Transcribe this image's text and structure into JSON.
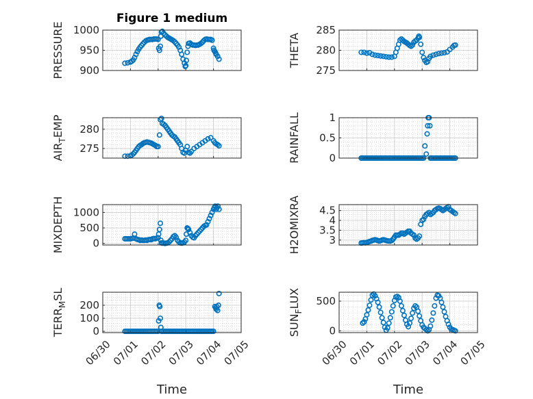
{
  "figure": {
    "title": "Figure 1 medium",
    "xlabel": "Time"
  },
  "colors": {
    "marker": "#0072BD",
    "axis": "#262626",
    "grid": "#c8c8c8",
    "background": "#ffffff"
  },
  "chart_data": [
    {
      "type": "scatter",
      "ylabel": "PRESSURE",
      "ylabel_sub": "",
      "ylabel_suffix": "",
      "ylim": [
        900,
        1000
      ],
      "yticks": [
        "900",
        "950",
        "1000"
      ],
      "ytick_values": [
        900,
        950,
        1000
      ],
      "xlim": [
        0,
        5
      ],
      "xtick_labels": [
        "06/30",
        "07/01",
        "07/02",
        "07/03",
        "07/04",
        "07/05"
      ],
      "show_xticklabels": false,
      "x": [
        0.8,
        0.9,
        1.0,
        1.05,
        1.1,
        1.15,
        1.2,
        1.25,
        1.3,
        1.35,
        1.4,
        1.45,
        1.5,
        1.55,
        1.6,
        1.65,
        1.7,
        1.75,
        1.8,
        1.85,
        1.9,
        1.95,
        2.0,
        2.02,
        2.05,
        2.08,
        2.1,
        2.12,
        2.15,
        2.2,
        2.25,
        2.3,
        2.35,
        2.4,
        2.45,
        2.5,
        2.55,
        2.6,
        2.65,
        2.7,
        2.75,
        2.8,
        2.85,
        2.9,
        2.95,
        2.98,
        3.0,
        3.02,
        3.05,
        3.08,
        3.1,
        3.15,
        3.2,
        3.25,
        3.3,
        3.35,
        3.4,
        3.45,
        3.5,
        3.55,
        3.6,
        3.65,
        3.7,
        3.75,
        3.8,
        3.85,
        3.9,
        3.95,
        4.0,
        4.02,
        4.05,
        4.08,
        4.1,
        4.15,
        4.2
      ],
      "y": [
        918,
        919,
        921,
        923,
        926,
        932,
        940,
        947,
        953,
        958,
        962,
        966,
        970,
        973,
        975,
        976,
        977,
        977,
        977,
        978,
        978,
        978,
        977,
        955,
        950,
        960,
        985,
        995,
        997,
        992,
        988,
        985,
        982,
        980,
        978,
        976,
        974,
        971,
        967,
        963,
        958,
        950,
        940,
        928,
        918,
        910,
        912,
        925,
        945,
        960,
        967,
        968,
        965,
        963,
        963,
        962,
        963,
        963,
        965,
        967,
        970,
        974,
        977,
        978,
        977,
        977,
        977,
        975,
        955,
        950,
        947,
        943,
        940,
        935,
        928
      ]
    },
    {
      "type": "scatter",
      "ylabel": "THETA",
      "ylabel_sub": "",
      "ylabel_suffix": "",
      "ylim": [
        275,
        285
      ],
      "yticks": [
        "275",
        "280",
        "285"
      ],
      "ytick_values": [
        275,
        280,
        285
      ],
      "xlim": [
        0,
        5
      ],
      "xtick_labels": [
        "06/30",
        "07/01",
        "07/02",
        "07/03",
        "07/04",
        "07/05"
      ],
      "show_xticklabels": false,
      "x": [
        0.8,
        0.9,
        1.0,
        1.1,
        1.2,
        1.3,
        1.4,
        1.5,
        1.6,
        1.7,
        1.8,
        1.9,
        2.0,
        2.05,
        2.1,
        2.15,
        2.2,
        2.25,
        2.3,
        2.35,
        2.4,
        2.45,
        2.5,
        2.55,
        2.6,
        2.65,
        2.7,
        2.75,
        2.8,
        2.85,
        2.88,
        2.9,
        2.95,
        3.0,
        3.05,
        3.1,
        3.15,
        3.2,
        3.25,
        3.3,
        3.4,
        3.5,
        3.6,
        3.7,
        3.8,
        3.9,
        4.0,
        4.1,
        4.15,
        4.2
      ],
      "y": [
        279.5,
        279.5,
        279.3,
        279.4,
        279.0,
        278.8,
        278.7,
        278.6,
        278.5,
        278.4,
        278.3,
        278.3,
        278.5,
        279.5,
        280.5,
        281.5,
        282.5,
        282.8,
        282.5,
        282.2,
        282.0,
        281.8,
        281.5,
        281.2,
        281.0,
        281.3,
        282.0,
        282.3,
        282.5,
        283.0,
        283.5,
        283.2,
        281.5,
        279.5,
        278.2,
        277.5,
        277.0,
        277.2,
        278.0,
        278.5,
        278.8,
        279.0,
        279.2,
        279.3,
        279.4,
        279.6,
        280.2,
        280.8,
        281.2,
        281.3
      ]
    },
    {
      "type": "scatter",
      "ylabel": "AIR",
      "ylabel_sub": "T",
      "ylabel_suffix": "EMP",
      "ylim": [
        272.5,
        283
      ],
      "yticks": [
        "275",
        "280"
      ],
      "ytick_values": [
        275,
        280
      ],
      "xlim": [
        0,
        5
      ],
      "xtick_labels": [
        "06/30",
        "07/01",
        "07/02",
        "07/03",
        "07/04",
        "07/05"
      ],
      "show_xticklabels": false,
      "x": [
        0.8,
        0.9,
        1.0,
        1.05,
        1.1,
        1.15,
        1.2,
        1.25,
        1.3,
        1.35,
        1.4,
        1.45,
        1.5,
        1.55,
        1.6,
        1.65,
        1.7,
        1.75,
        1.8,
        1.85,
        1.9,
        1.95,
        2.0,
        2.05,
        2.08,
        2.12,
        2.15,
        2.2,
        2.25,
        2.3,
        2.35,
        2.4,
        2.45,
        2.5,
        2.55,
        2.6,
        2.65,
        2.7,
        2.75,
        2.8,
        2.85,
        2.9,
        2.95,
        3.0,
        3.05,
        3.1,
        3.15,
        3.2,
        3.3,
        3.4,
        3.5,
        3.6,
        3.7,
        3.8,
        3.9,
        4.0,
        4.05,
        4.1,
        4.15,
        4.2
      ],
      "y": [
        273,
        273,
        273.1,
        273.3,
        273.6,
        274.0,
        274.5,
        275.0,
        275.5,
        275.8,
        276.0,
        276.3,
        276.5,
        276.6,
        276.7,
        276.6,
        276.5,
        276.4,
        276.2,
        276.0,
        275.8,
        275.5,
        275.5,
        278.5,
        282.5,
        282.8,
        281.5,
        281.3,
        281.0,
        280.5,
        280.0,
        279.5,
        279.0,
        278.5,
        278.2,
        278.0,
        277.5,
        277.0,
        276.5,
        276.0,
        275.0,
        274.0,
        273.8,
        274.5,
        275.5,
        274.0,
        273.8,
        274.2,
        275.0,
        275.5,
        276.0,
        276.5,
        277.0,
        277.5,
        277.8,
        277.0,
        276.5,
        276.2,
        276.0,
        275.7
      ]
    },
    {
      "type": "scatter",
      "ylabel": "RAINFALL",
      "ylabel_sub": "",
      "ylabel_suffix": "",
      "ylim": [
        0,
        1
      ],
      "yticks": [
        "0",
        "0.5",
        "1"
      ],
      "ytick_values": [
        0,
        0.5,
        1
      ],
      "xlim": [
        0,
        5
      ],
      "xtick_labels": [
        "06/30",
        "07/01",
        "07/02",
        "07/03",
        "07/04",
        "07/05"
      ],
      "show_xticklabels": false,
      "x": [
        0.8,
        0.85,
        0.9,
        0.95,
        1.0,
        1.05,
        1.1,
        1.15,
        1.2,
        1.25,
        1.3,
        1.35,
        1.4,
        1.45,
        1.5,
        1.55,
        1.6,
        1.65,
        1.7,
        1.75,
        1.8,
        1.85,
        1.9,
        1.95,
        2.0,
        2.05,
        2.1,
        2.15,
        2.2,
        2.25,
        2.3,
        2.35,
        2.4,
        2.45,
        2.5,
        2.55,
        2.6,
        2.65,
        2.7,
        2.75,
        2.8,
        2.85,
        2.9,
        2.95,
        3.0,
        3.05,
        3.1,
        3.15,
        3.18,
        3.2,
        3.22,
        3.25,
        3.28,
        3.3,
        3.32,
        3.35,
        3.4,
        3.45,
        3.5,
        3.55,
        3.6,
        3.65,
        3.7,
        3.75,
        3.8,
        3.85,
        3.9,
        3.95,
        4.0,
        4.05,
        4.1,
        4.15,
        4.2
      ],
      "y": [
        0,
        0,
        0,
        0,
        0,
        0,
        0,
        0,
        0,
        0,
        0,
        0,
        0,
        0,
        0,
        0,
        0,
        0,
        0,
        0,
        0,
        0,
        0,
        0,
        0,
        0,
        0,
        0,
        0,
        0,
        0,
        0,
        0,
        0,
        0,
        0,
        0,
        0,
        0,
        0,
        0,
        0,
        0,
        0,
        0,
        0,
        0.3,
        0.1,
        0.6,
        0.8,
        1,
        1,
        0.8,
        0,
        0,
        0,
        0,
        0,
        0,
        0,
        0,
        0,
        0,
        0,
        0,
        0,
        0,
        0,
        0,
        0,
        0,
        0,
        0
      ]
    },
    {
      "type": "scatter",
      "ylabel": "MIXDEPTH",
      "ylabel_sub": "",
      "ylabel_suffix": "",
      "ylim": [
        -50,
        1250
      ],
      "yticks": [
        "0",
        "500",
        "1000"
      ],
      "ytick_values": [
        0,
        500,
        1000
      ],
      "xlim": [
        0,
        5
      ],
      "xtick_labels": [
        "06/30",
        "07/01",
        "07/02",
        "07/03",
        "07/04",
        "07/05"
      ],
      "show_xticklabels": false,
      "x": [
        0.8,
        0.85,
        0.9,
        0.95,
        1.0,
        1.05,
        1.1,
        1.15,
        1.2,
        1.25,
        1.3,
        1.35,
        1.4,
        1.45,
        1.5,
        1.55,
        1.6,
        1.65,
        1.7,
        1.75,
        1.8,
        1.85,
        1.9,
        1.95,
        2.0,
        2.02,
        2.05,
        2.08,
        2.1,
        2.12,
        2.15,
        2.2,
        2.25,
        2.3,
        2.35,
        2.4,
        2.45,
        2.5,
        2.55,
        2.6,
        2.65,
        2.7,
        2.75,
        2.8,
        2.85,
        2.9,
        2.95,
        3.0,
        3.02,
        3.05,
        3.08,
        3.1,
        3.15,
        3.2,
        3.25,
        3.3,
        3.35,
        3.4,
        3.45,
        3.5,
        3.55,
        3.6,
        3.65,
        3.7,
        3.75,
        3.8,
        3.85,
        3.9,
        3.95,
        4.0,
        4.03,
        4.06,
        4.1,
        4.13,
        4.16,
        4.2
      ],
      "y": [
        150,
        150,
        150,
        150,
        150,
        160,
        170,
        300,
        150,
        130,
        120,
        100,
        110,
        100,
        100,
        110,
        100,
        120,
        130,
        120,
        150,
        160,
        150,
        170,
        180,
        300,
        450,
        650,
        100,
        20,
        10,
        10,
        0,
        10,
        20,
        50,
        100,
        150,
        220,
        250,
        200,
        100,
        50,
        20,
        10,
        20,
        50,
        100,
        300,
        500,
        480,
        450,
        350,
        250,
        200,
        180,
        250,
        300,
        350,
        400,
        450,
        500,
        550,
        580,
        600,
        700,
        800,
        900,
        1000,
        1100,
        1150,
        1200,
        1100,
        1150,
        1200,
        1100
      ]
    },
    {
      "type": "scatter",
      "ylabel": "H2OMIXRA",
      "ylabel_sub": "",
      "ylabel_suffix": "",
      "ylim": [
        2.75,
        4.8
      ],
      "yticks": [
        "3",
        "3.5",
        "4",
        "4.5"
      ],
      "ytick_values": [
        3,
        3.5,
        4,
        4.5
      ],
      "xlim": [
        0,
        5
      ],
      "xtick_labels": [
        "06/30",
        "07/01",
        "07/02",
        "07/03",
        "07/04",
        "07/05"
      ],
      "show_xticklabels": false,
      "x": [
        0.8,
        0.85,
        0.9,
        0.95,
        1.0,
        1.05,
        1.1,
        1.15,
        1.2,
        1.25,
        1.3,
        1.35,
        1.4,
        1.45,
        1.5,
        1.55,
        1.6,
        1.65,
        1.7,
        1.75,
        1.8,
        1.85,
        1.9,
        1.95,
        2.0,
        2.05,
        2.1,
        2.15,
        2.2,
        2.25,
        2.3,
        2.35,
        2.4,
        2.45,
        2.5,
        2.55,
        2.6,
        2.65,
        2.7,
        2.75,
        2.8,
        2.85,
        2.9,
        2.95,
        3.0,
        3.05,
        3.1,
        3.15,
        3.2,
        3.25,
        3.3,
        3.35,
        3.4,
        3.45,
        3.5,
        3.55,
        3.6,
        3.65,
        3.7,
        3.75,
        3.8,
        3.85,
        3.9,
        3.95,
        4.0,
        4.05,
        4.1,
        4.15,
        4.2
      ],
      "y": [
        2.85,
        2.86,
        2.87,
        2.86,
        2.88,
        2.9,
        2.93,
        2.95,
        2.98,
        3.0,
        3.02,
        3.0,
        2.97,
        2.95,
        2.97,
        3.0,
        3.02,
        3.0,
        2.98,
        2.96,
        2.95,
        2.95,
        2.98,
        3.05,
        3.15,
        3.25,
        3.25,
        3.25,
        3.3,
        3.35,
        3.35,
        3.3,
        3.35,
        3.4,
        3.45,
        3.45,
        3.35,
        3.3,
        3.25,
        3.1,
        3.05,
        3.1,
        3.2,
        3.8,
        4.0,
        4.05,
        4.2,
        4.3,
        4.35,
        4.4,
        4.3,
        4.35,
        4.4,
        4.5,
        4.55,
        4.6,
        4.62,
        4.6,
        4.55,
        4.5,
        4.55,
        4.6,
        4.65,
        4.7,
        4.55,
        4.5,
        4.45,
        4.4,
        4.35
      ]
    },
    {
      "type": "scatter",
      "ylabel": "TERR",
      "ylabel_sub": "M",
      "ylabel_suffix": "SL",
      "ylim": [
        -10,
        300
      ],
      "yticks": [
        "0",
        "100",
        "200"
      ],
      "ytick_values": [
        0,
        100,
        200
      ],
      "xlim": [
        0,
        5
      ],
      "xtick_labels": [
        "06/30",
        "07/01",
        "07/02",
        "07/03",
        "07/04",
        "07/05"
      ],
      "show_xticklabels": true,
      "x": [
        0.8,
        0.85,
        0.9,
        0.95,
        1.0,
        1.05,
        1.1,
        1.15,
        1.2,
        1.25,
        1.3,
        1.35,
        1.4,
        1.45,
        1.5,
        1.55,
        1.6,
        1.65,
        1.7,
        1.75,
        1.8,
        1.85,
        1.9,
        1.95,
        2.0,
        2.02,
        2.04,
        2.06,
        2.08,
        2.1,
        2.12,
        2.15,
        2.2,
        2.25,
        2.3,
        2.35,
        2.4,
        2.45,
        2.5,
        2.55,
        2.6,
        2.65,
        2.7,
        2.75,
        2.8,
        2.85,
        2.9,
        2.95,
        3.0,
        3.05,
        3.1,
        3.15,
        3.2,
        3.25,
        3.3,
        3.35,
        3.4,
        3.45,
        3.5,
        3.55,
        3.6,
        3.65,
        3.7,
        3.75,
        3.8,
        3.85,
        3.9,
        3.95,
        4.0,
        4.05,
        4.08,
        4.1,
        4.12,
        4.15,
        4.18,
        4.2
      ],
      "y": [
        0,
        0,
        0,
        0,
        0,
        0,
        0,
        0,
        0,
        0,
        0,
        0,
        0,
        0,
        0,
        0,
        0,
        0,
        0,
        0,
        0,
        0,
        0,
        0,
        0,
        80,
        200,
        190,
        100,
        30,
        0,
        0,
        0,
        0,
        0,
        0,
        0,
        0,
        0,
        0,
        0,
        0,
        0,
        0,
        0,
        0,
        0,
        0,
        0,
        0,
        0,
        0,
        0,
        0,
        0,
        0,
        0,
        0,
        0,
        0,
        0,
        0,
        0,
        0,
        0,
        0,
        0,
        0,
        0,
        190,
        180,
        170,
        190,
        160,
        200,
        290
      ]
    },
    {
      "type": "scatter",
      "ylabel": "SUN",
      "ylabel_sub": "F",
      "ylabel_suffix": "LUX",
      "ylim": [
        -30,
        650
      ],
      "yticks": [
        "0",
        "500"
      ],
      "ytick_values": [
        0,
        500
      ],
      "xlim": [
        0,
        5
      ],
      "xtick_labels": [
        "06/30",
        "07/01",
        "07/02",
        "07/03",
        "07/04",
        "07/05"
      ],
      "show_xticklabels": true,
      "x": [
        0.85,
        0.9,
        0.95,
        1.0,
        1.05,
        1.1,
        1.15,
        1.2,
        1.25,
        1.3,
        1.35,
        1.4,
        1.45,
        1.5,
        1.55,
        1.6,
        1.65,
        1.7,
        1.75,
        1.8,
        1.85,
        1.9,
        1.95,
        2.0,
        2.05,
        2.1,
        2.15,
        2.2,
        2.25,
        2.3,
        2.35,
        2.4,
        2.45,
        2.5,
        2.55,
        2.6,
        2.65,
        2.7,
        2.75,
        2.8,
        2.85,
        2.9,
        2.95,
        3.0,
        3.05,
        3.1,
        3.15,
        3.2,
        3.25,
        3.3,
        3.35,
        3.4,
        3.45,
        3.5,
        3.55,
        3.6,
        3.65,
        3.7,
        3.75,
        3.8,
        3.85,
        3.9,
        3.95,
        4.0,
        4.05,
        4.1,
        4.15,
        4.2
      ],
      "y": [
        130,
        150,
        200,
        270,
        350,
        430,
        520,
        600,
        620,
        590,
        540,
        480,
        400,
        310,
        220,
        140,
        60,
        10,
        50,
        130,
        220,
        320,
        420,
        510,
        570,
        580,
        560,
        500,
        420,
        340,
        260,
        180,
        110,
        70,
        130,
        210,
        300,
        380,
        420,
        400,
        330,
        250,
        170,
        100,
        60,
        40,
        20,
        0,
        20,
        80,
        180,
        300,
        420,
        550,
        600,
        590,
        550,
        480,
        400,
        320,
        240,
        170,
        110,
        60,
        30,
        20,
        10,
        0
      ]
    }
  ]
}
